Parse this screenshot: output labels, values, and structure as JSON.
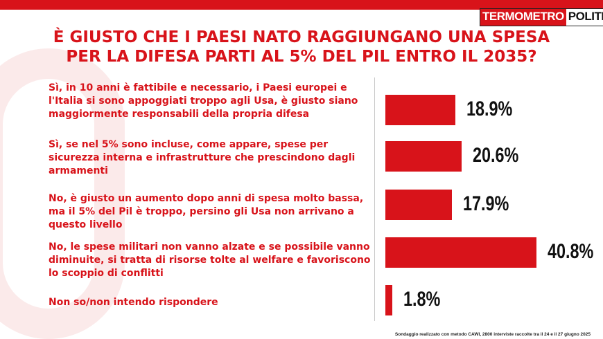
{
  "logo": {
    "part1": "TERMOMETRO",
    "part2": "POLITICO"
  },
  "title_lines": [
    "È GIUSTO CHE I PAESI NATO RAGGIUNGANO UNA SPESA",
    "PER LA DIFESA PARTI AL 5% DEL PIL ENTRO IL 2035?"
  ],
  "chart_data": {
    "type": "bar",
    "orientation": "horizontal",
    "title": "È GIUSTO CHE I PAESI NATO RAGGIUNGANO UNA SPESA PER LA DIFESA PARTI AL 5% DEL PIL ENTRO IL 2035?",
    "categories": [
      "Sì, in 10 anni è fattibile e necessario, i Paesi europei e l'Italia si sono appoggiati troppo agli Usa, è giusto siano maggiormente responsabili della propria difesa",
      "Sì, se nel 5% sono incluse, come appare, spese per sicurezza interna e infrastrutture che prescindono dagli armamenti",
      "No, è giusto un aumento dopo anni di spesa molto bassa, ma il 5% del Pil è troppo, persino gli Usa non arrivano a questo livello",
      "No, le spese militari non vanno alzate e se possibile vanno diminuite, si tratta di risorse tolte al welfare e favoriscono lo scoppio di conflitti",
      "Non so/non intendo rispondere"
    ],
    "values": [
      18.9,
      20.6,
      17.9,
      40.8,
      1.8
    ],
    "value_labels": [
      "18.9%",
      "20.6%",
      "17.9%",
      "40.8%",
      "1.8%"
    ],
    "bar_color": "#d8131a",
    "xlabel": "",
    "ylabel": ""
  },
  "footer": "Sondaggio realizzato con metodo CAWI, 2800 interviste raccolte tra il 24 e il 27 giugno 2025"
}
